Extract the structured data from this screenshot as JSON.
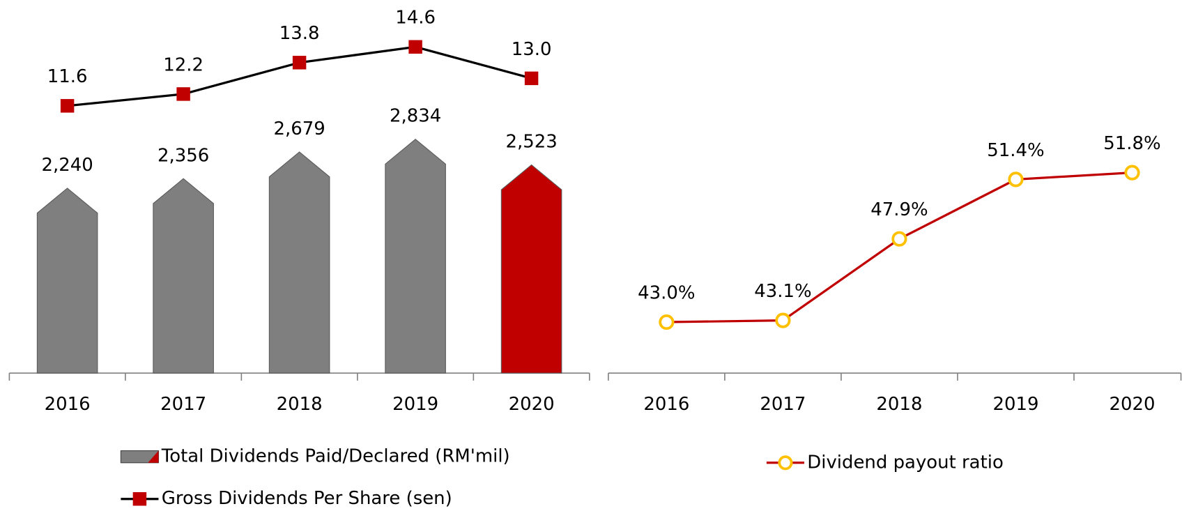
{
  "chart_data": [
    {
      "type": "bar",
      "categories": [
        "2016",
        "2017",
        "2018",
        "2019",
        "2020"
      ],
      "ylim": [
        0,
        4000
      ],
      "y2lim": [
        -2,
        14.8
      ],
      "series": [
        {
          "name": "Total Dividends Paid/Declared (RM'mil)",
          "colors": [
            "#7f7f7f",
            "#7f7f7f",
            "#7f7f7f",
            "#7f7f7f",
            "#c00000"
          ],
          "values": [
            2240,
            2356,
            2679,
            2834,
            2523
          ],
          "value_labels": [
            "2,240",
            "2,356",
            "2,679",
            "2,834",
            "2,523"
          ]
        },
        {
          "name": "Gross Dividends Per Share (sen)",
          "type": "line",
          "axis": "y2",
          "color": "#000000",
          "marker_color": "#c00000",
          "values": [
            11.6,
            12.2,
            13.8,
            14.6,
            13.0
          ],
          "value_labels": [
            "11.6",
            "12.2",
            "13.8",
            "14.6",
            "13.0"
          ]
        }
      ]
    },
    {
      "type": "line",
      "categories": [
        "2016",
        "2017",
        "2018",
        "2019",
        "2020"
      ],
      "ylim": [
        40,
        53
      ],
      "series": [
        {
          "name": "Dividend payout ratio",
          "color": "#c00000",
          "marker_color": "#ffc000",
          "values": [
            43.0,
            43.1,
            47.9,
            51.4,
            51.8
          ],
          "value_labels": [
            "43.0%",
            "43.1%",
            "47.9%",
            "51.4%",
            "51.8%"
          ]
        }
      ]
    }
  ]
}
